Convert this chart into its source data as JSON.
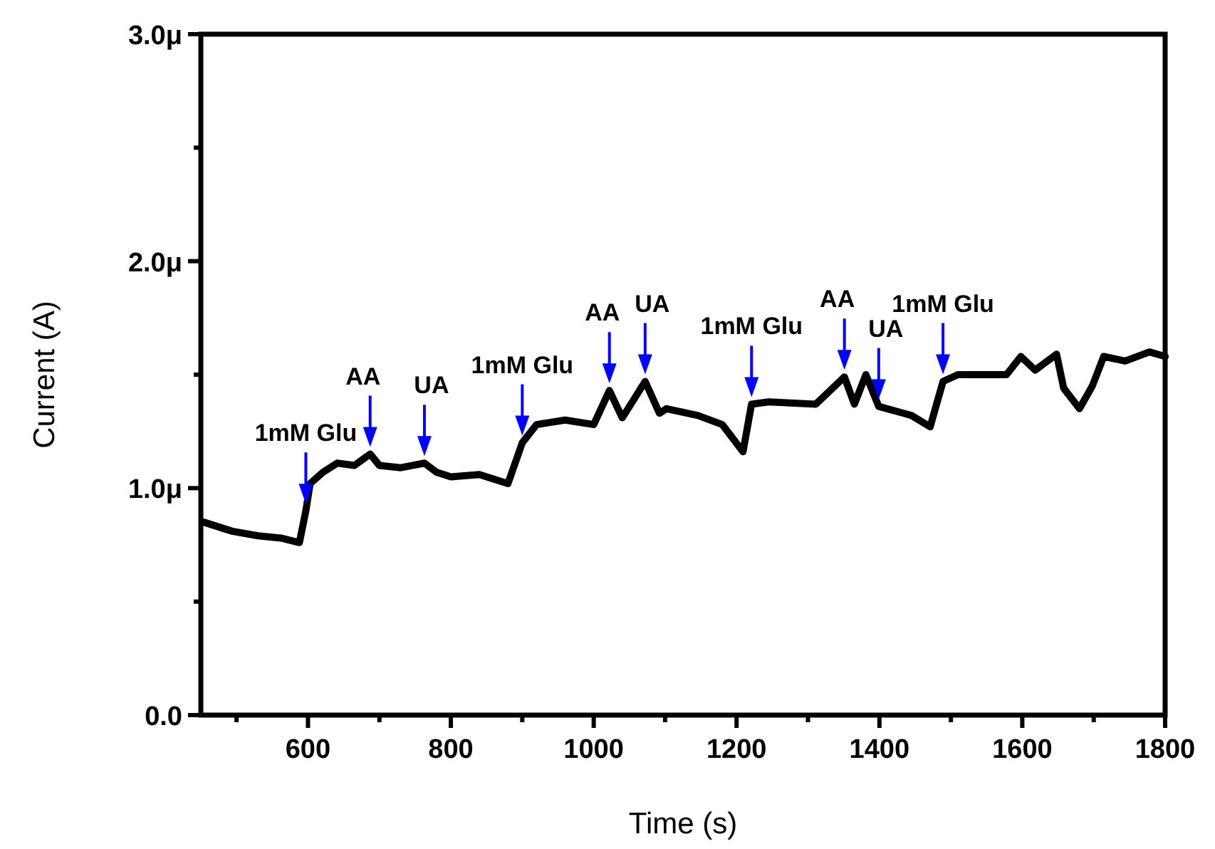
{
  "chart_data": {
    "type": "line",
    "xlabel": "Time (s)",
    "ylabel": "Current (A)",
    "xlim": [
      450,
      1800
    ],
    "ylim": [
      0,
      3
    ],
    "xticks": [
      {
        "value": 500,
        "label": null
      },
      600,
      {
        "value": 700,
        "label": null
      },
      800,
      {
        "value": 900,
        "label": null
      },
      1000,
      {
        "value": 1100,
        "label": null
      },
      1200,
      {
        "value": 1300,
        "label": null
      },
      1400,
      {
        "value": 1500,
        "label": null
      },
      1600,
      {
        "value": 1700,
        "label": null
      },
      1800
    ],
    "yticks": [
      {
        "value": 0,
        "label": "0.0"
      },
      {
        "value": 0.5,
        "label": null
      },
      {
        "value": 1,
        "label": "1.0μ"
      },
      {
        "value": 1.5,
        "label": null
      },
      {
        "value": 2,
        "label": "2.0μ"
      },
      {
        "value": 2.5,
        "label": null
      },
      {
        "value": 3,
        "label": "3.0μ"
      }
    ],
    "grid": false,
    "marker": "none",
    "line_style": "solid",
    "series": [
      {
        "color": "#000000",
        "x": [
          454,
          494,
          530,
          562,
          588,
          597,
          603,
          621,
          641,
          665,
          687,
          700,
          730,
          763,
          780,
          800,
          840,
          880,
          900,
          920,
          960,
          1000,
          1022,
          1040,
          1072,
          1092,
          1102,
          1146,
          1180,
          1209,
          1221,
          1245,
          1311,
          1351,
          1365,
          1381,
          1399,
          1445,
          1471,
          1489,
          1510,
          1578,
          1598,
          1618,
          1648,
          1658,
          1680,
          1698,
          1714,
          1744,
          1778,
          1800
        ],
        "values": [
          0.85,
          0.81,
          0.79,
          0.78,
          0.76,
          0.9,
          1.02,
          1.07,
          1.11,
          1.1,
          1.15,
          1.1,
          1.09,
          1.11,
          1.07,
          1.05,
          1.06,
          1.02,
          1.2,
          1.28,
          1.3,
          1.28,
          1.43,
          1.31,
          1.47,
          1.33,
          1.35,
          1.32,
          1.28,
          1.16,
          1.37,
          1.38,
          1.37,
          1.49,
          1.37,
          1.5,
          1.36,
          1.32,
          1.27,
          1.47,
          1.5,
          1.5,
          1.58,
          1.52,
          1.59,
          1.44,
          1.35,
          1.45,
          1.58,
          1.56,
          1.6,
          1.58
        ]
      }
    ],
    "annotations": [
      {
        "text": "1mM Glu",
        "x": 597,
        "y": 0.9
      },
      {
        "text": "AA",
        "x": 687,
        "y": 1.15
      },
      {
        "text": "UA",
        "x": 763,
        "y": 1.11
      },
      {
        "text": "1mM Glu",
        "x": 900,
        "y": 1.2
      },
      {
        "text": "AA",
        "x": 1022,
        "y": 1.43
      },
      {
        "text": "UA",
        "x": 1072,
        "y": 1.47
      },
      {
        "text": "1mM Glu",
        "x": 1221,
        "y": 1.37
      },
      {
        "text": "AA",
        "x": 1351,
        "y": 1.49
      },
      {
        "text": "UA",
        "x": 1399,
        "y": 1.36
      },
      {
        "text": "1mM Glu",
        "x": 1489,
        "y": 1.47
      }
    ]
  }
}
